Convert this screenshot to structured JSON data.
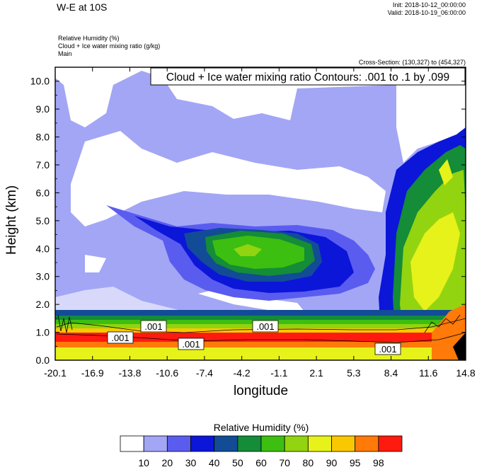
{
  "header": {
    "title": "W-E at 10S",
    "init": "Init: 2018-10-12_00:00:00",
    "valid": "Valid: 2018-10-19_06:00:00"
  },
  "fields": {
    "line1": "Relative Humidity   (%)",
    "line2": "Cloud + Ice water mixing ratio   (g/kg)",
    "line3": "Main"
  },
  "cross_section": "Cross-Section: (130,327) to (454,327)",
  "contour_label": "Cloud + Ice water mixing ratio Contours: .001 to .1 by .099",
  "colorbar": {
    "title": "Relative Humidity  (%)",
    "labels": [
      "10",
      "20",
      "30",
      "40",
      "50",
      "60",
      "70",
      "80",
      "90",
      "95",
      "98"
    ],
    "colors": [
      "#ffffff",
      "#a3a6f5",
      "#5a5cf0",
      "#0c16d8",
      "#124c96",
      "#148c38",
      "#3cbf10",
      "#92d410",
      "#e6f21a",
      "#fac800",
      "#ff7a08",
      "#ff1a10"
    ]
  },
  "contour_tags": [
    ".001",
    ".001",
    ".001",
    ".001",
    ".001"
  ],
  "chart_data": {
    "type": "contour",
    "title": "W-E at 10S",
    "xlabel": "longitude",
    "ylabel": "Height (km)",
    "xticks": [
      "-20.1",
      "-16.9",
      "-13.8",
      "-10.6",
      "-7.4",
      "-4.2",
      "-1.1",
      "2.1",
      "5.3",
      "8.4",
      "11.6",
      "14.8"
    ],
    "yticks": [
      "0.0",
      "1.0",
      "2.0",
      "3.0",
      "4.0",
      "5.0",
      "6.0",
      "7.0",
      "8.0",
      "9.0",
      "10.0"
    ],
    "xlim": [
      -20.1,
      14.8
    ],
    "ylim": [
      0,
      10.5
    ],
    "series": [
      {
        "name": "Relative Humidity",
        "units": "%",
        "levels": [
          10,
          20,
          30,
          40,
          50,
          60,
          70,
          80,
          90,
          95,
          98
        ]
      },
      {
        "name": "Cloud + Ice water mixing ratio",
        "units": "g/kg",
        "levels": [
          0.001,
          0.1
        ]
      }
    ]
  }
}
